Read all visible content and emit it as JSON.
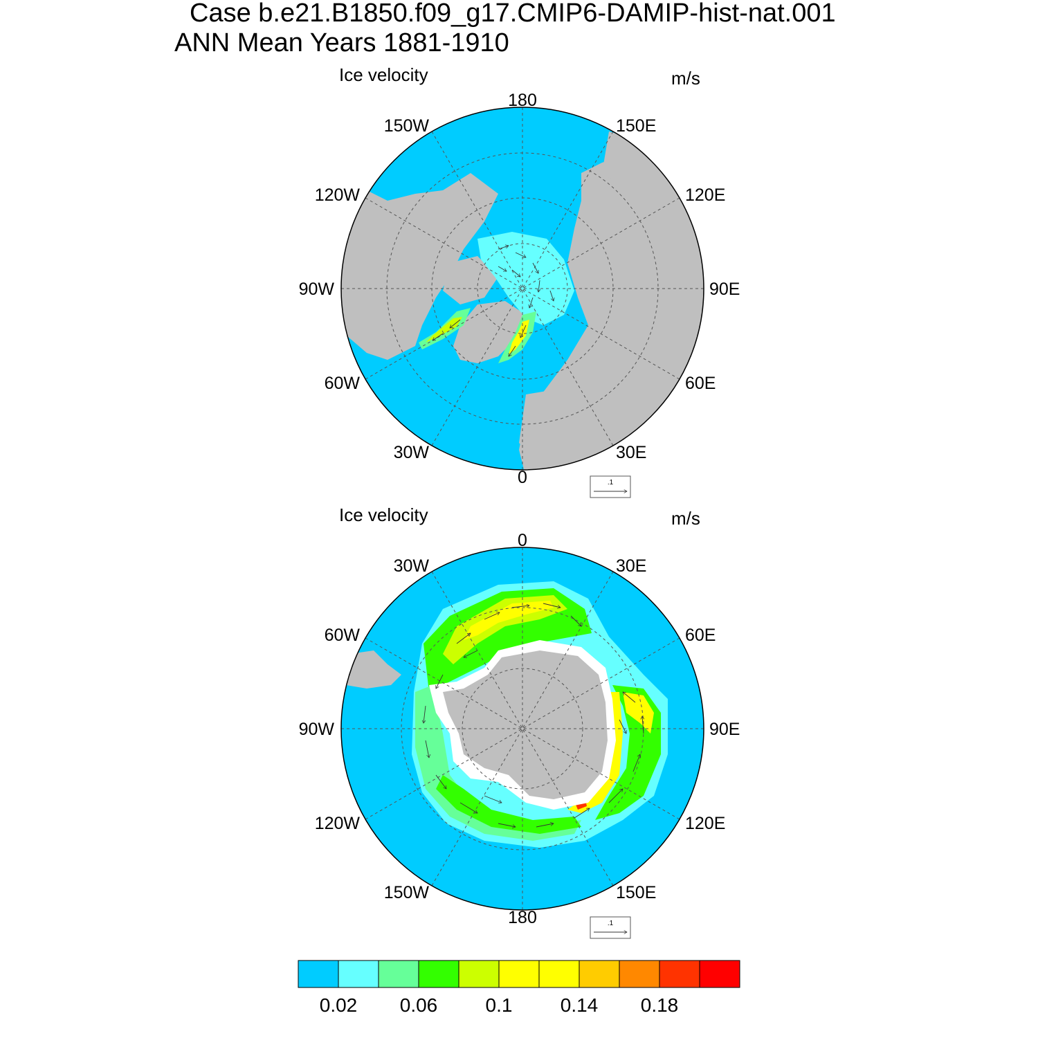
{
  "header": {
    "line1": "Case b.e21.B1850.f09_g17.CMIP6-DAMIP-hist-nat.001",
    "line2": "ANN Mean   Years 1881-1910"
  },
  "panels": [
    {
      "name": "north",
      "title": "Ice velocity",
      "units": "m/s",
      "lon_labels": [
        "180",
        "150E",
        "120E",
        "90E",
        "60E",
        "30E",
        "0",
        "30W",
        "60W",
        "90W",
        "120W",
        "150W"
      ],
      "ref_vector_label": ".1"
    },
    {
      "name": "south",
      "title": "Ice velocity",
      "units": "m/s",
      "lon_labels": [
        "0",
        "30E",
        "60E",
        "90E",
        "120E",
        "150E",
        "180",
        "150W",
        "120W",
        "90W",
        "60W",
        "30W"
      ],
      "ref_vector_label": ".1"
    }
  ],
  "colorbar": {
    "colors": [
      "#00ccff",
      "#66ffff",
      "#66ff99",
      "#33ff00",
      "#ccff00",
      "#ffff00",
      "#ffff00",
      "#ffcc00",
      "#ff8800",
      "#ff3300",
      "#ff0000"
    ],
    "tick_labels": [
      "0.02",
      "0.06",
      "0.1",
      "0.14",
      "0.18"
    ]
  },
  "map_colors": {
    "ocean": "#00ccff",
    "land": "#bfbfbf",
    "coast_gap": "#ffffff"
  }
}
